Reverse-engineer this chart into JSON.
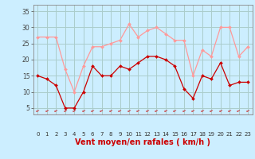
{
  "x": [
    0,
    1,
    2,
    3,
    4,
    5,
    6,
    7,
    8,
    9,
    10,
    11,
    12,
    13,
    14,
    15,
    16,
    17,
    18,
    19,
    20,
    21,
    22,
    23
  ],
  "avg_wind": [
    15,
    14,
    12,
    5,
    5,
    10,
    18,
    15,
    15,
    18,
    17,
    19,
    21,
    21,
    20,
    18,
    11,
    8,
    15,
    14,
    19,
    12,
    13,
    13
  ],
  "gust_wind": [
    27,
    27,
    27,
    17,
    10,
    18,
    24,
    24,
    25,
    26,
    31,
    27,
    29,
    30,
    28,
    26,
    26,
    15,
    23,
    21,
    30,
    30,
    21,
    24
  ],
  "bg_color": "#cceeff",
  "grid_color": "#aacccc",
  "avg_color": "#cc0000",
  "gust_color": "#ff9999",
  "xlabel": "Vent moyen/en rafales ( km/h )",
  "xlabel_color": "#cc0000",
  "yticks": [
    5,
    10,
    15,
    20,
    25,
    30,
    35
  ],
  "ylim": [
    3,
    37
  ],
  "xlim": [
    -0.5,
    23.5
  ],
  "marker_row_char": "←"
}
